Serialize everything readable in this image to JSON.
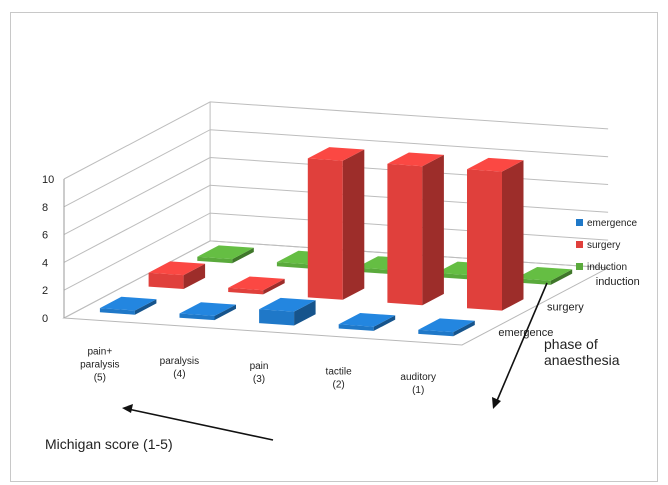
{
  "chart_data": {
    "type": "bar",
    "variant": "3d-column",
    "title": "",
    "categories": [
      "pain+\nparalysis\n(5)",
      "paralysis\n(4)",
      "pain\n(3)",
      "tactile\n(2)",
      "auditory\n(1)"
    ],
    "depth_categories": [
      "emergence",
      "surgery",
      "induction"
    ],
    "series": [
      {
        "name": "emergence",
        "color": "#1f78c8",
        "values": [
          0.3,
          0.3,
          1.0,
          0.3,
          0.3
        ]
      },
      {
        "name": "surgery",
        "color": "#e0403c",
        "values": [
          1.0,
          0.3,
          10.0,
          10.0,
          10.0
        ]
      },
      {
        "name": "induction",
        "color": "#5aaa3c",
        "values": [
          0.3,
          0.3,
          0.3,
          0.3,
          0.3
        ]
      }
    ],
    "yticks": [
      "0",
      "2",
      "4",
      "6",
      "8",
      "10"
    ],
    "ylim": [
      0,
      10
    ],
    "legend_position": "right",
    "grid": true,
    "xlabel": "Michigan score (1-5)",
    "depth_label": "phase of\nanaesthesia"
  }
}
